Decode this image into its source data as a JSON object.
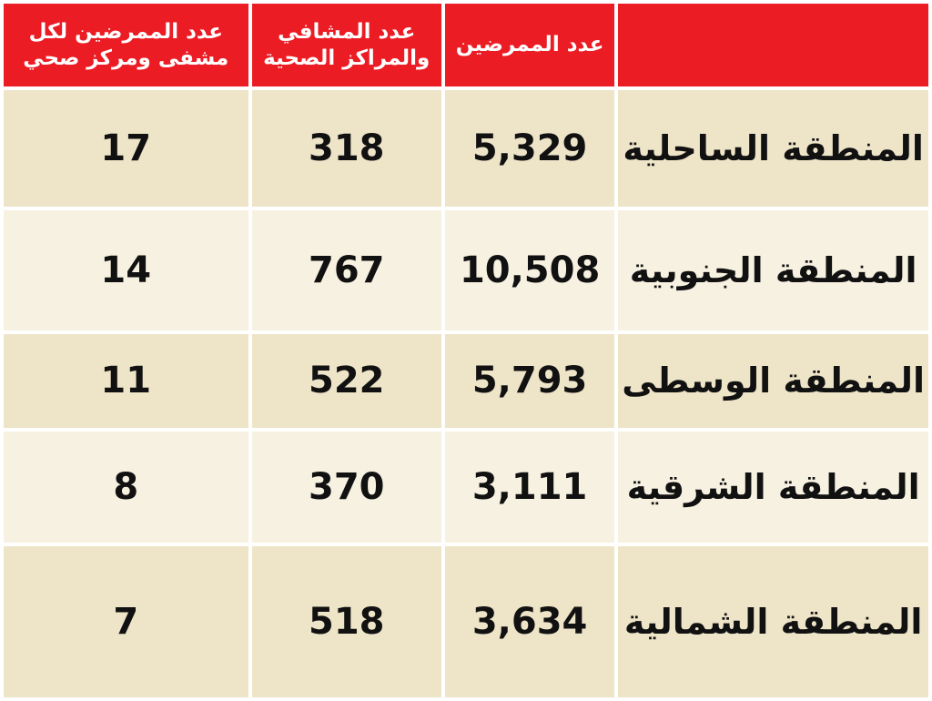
{
  "header": {
    "ratio": "عدد الممرضين لكل مشفى ومركز صحي",
    "facilities": "عدد المشافي والمراكز الصحية",
    "nurses": "عدد الممرضين",
    "region": ""
  },
  "rows": [
    {
      "region": "المنطقة الساحلية",
      "nurses": "5,329",
      "facilities": "318",
      "ratio": "17"
    },
    {
      "region": "المنطقة الجنوبية",
      "nurses": "10,508",
      "facilities": "767",
      "ratio": "14"
    },
    {
      "region": "المنطقة الوسطى",
      "nurses": "5,793",
      "facilities": "522",
      "ratio": "11"
    },
    {
      "region": "المنطقة الشرقية",
      "nurses": "3,111",
      "facilities": "370",
      "ratio": "8"
    },
    {
      "region": "المنطقة الشمالية",
      "nurses": "3,634",
      "facilities": "518",
      "ratio": "7"
    }
  ],
  "colors": {
    "header": "#ec1c24",
    "row_dark": "#eee4c8",
    "row_light": "#f7f1e1"
  }
}
